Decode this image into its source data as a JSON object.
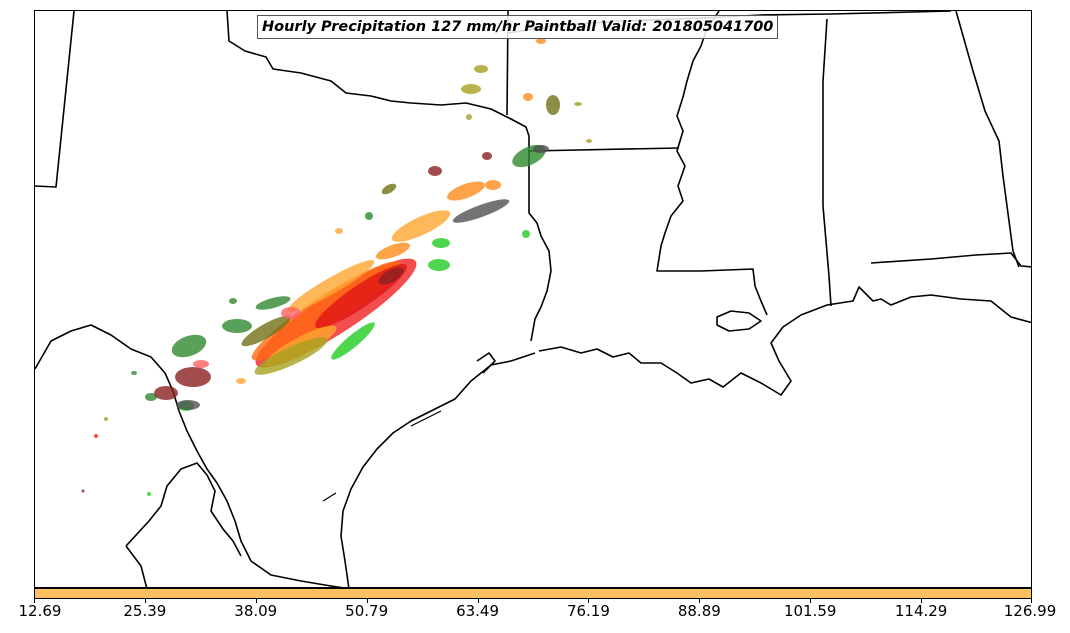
{
  "title": "Hourly Precipitation 127 mm/hr Paintball Valid: 201805041700",
  "colorbar": {
    "color": "#fcc060",
    "tick_labels": [
      "12.69",
      "25.39",
      "38.09",
      "50.79",
      "63.49",
      "76.19",
      "88.89",
      "101.59",
      "114.29",
      "126.99"
    ]
  },
  "colors": {
    "red": "#f02020",
    "orange": "#ff8c1a",
    "light_orange": "#ffa630",
    "dark_green": "#2f8a2f",
    "bright_green": "#22cc22",
    "olive": "#a8a020",
    "dark_olive": "#707018",
    "maroon": "#8b2020",
    "gray": "#505050",
    "pink": "#ff6060"
  }
}
